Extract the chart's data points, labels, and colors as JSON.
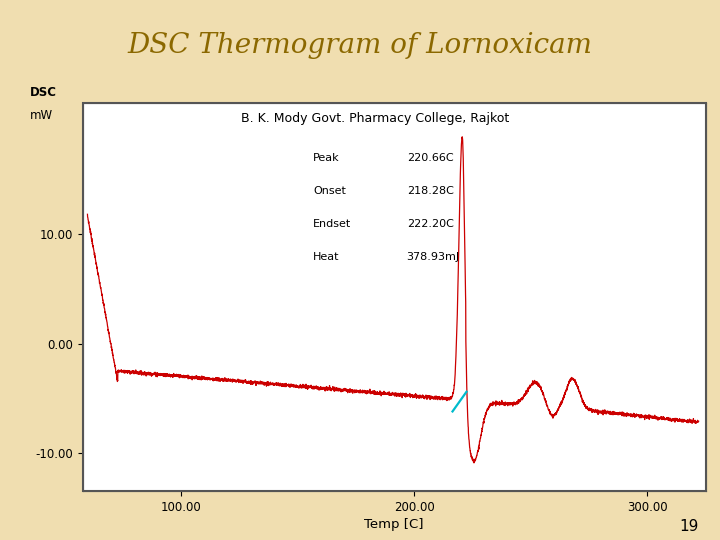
{
  "title": "DSC Thermogram of Lornoxicam",
  "subtitle": "B. K. Mody Govt. Pharmacy College, Rajkot",
  "xlabel": "Temp [C]",
  "ylabel_line1": "DSC",
  "ylabel_line2": "mW",
  "xlim": [
    58,
    325
  ],
  "ylim": [
    -13.5,
    22
  ],
  "xticks": [
    100.0,
    200.0,
    300.0
  ],
  "yticks": [
    -10.0,
    0.0,
    10.0
  ],
  "line_color": "#cc0000",
  "cyan_color": "#00bbcc",
  "background_color": "#f0deb0",
  "plot_bg": "#ffffff",
  "title_color": "#8B6800",
  "page_number": "19",
  "ann_labels": [
    "Peak",
    "Onset",
    "Endset",
    "Heat"
  ],
  "ann_values": [
    "220.66C",
    "218.28C",
    "222.20C",
    "378.93mJ"
  ]
}
